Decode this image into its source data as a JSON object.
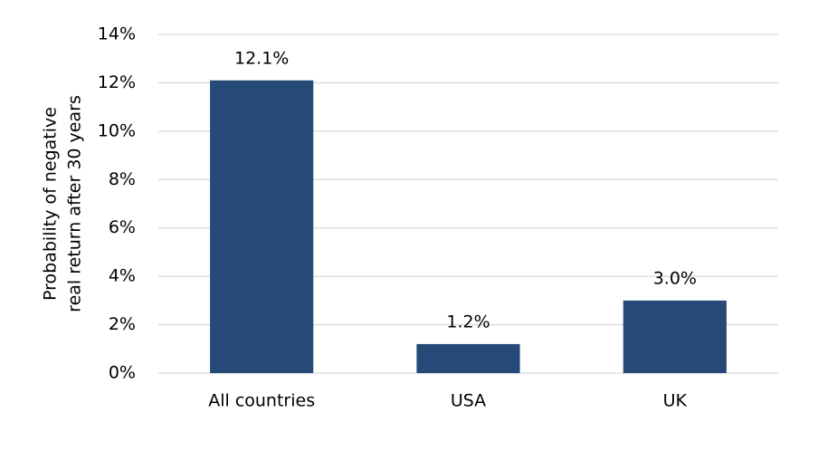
{
  "chart_data": {
    "type": "bar",
    "ylabel": [
      "Probability of negative",
      "real return after 30 years"
    ],
    "categories": [
      "All countries",
      "USA",
      "UK"
    ],
    "values": [
      12.1,
      1.2,
      3.0
    ],
    "value_labels": [
      "12.1%",
      "1.2%",
      "3.0%"
    ],
    "color": "#264a78",
    "ylim": [
      0,
      14
    ],
    "yticks": [
      {
        "value": 0,
        "label": "0%"
      },
      {
        "value": 2,
        "label": "2%"
      },
      {
        "value": 4,
        "label": "4%"
      },
      {
        "value": 6,
        "label": "6%"
      },
      {
        "value": 8,
        "label": "8%"
      },
      {
        "value": 10,
        "label": "10%"
      },
      {
        "value": 12,
        "label": "12%"
      },
      {
        "value": 14,
        "label": "14%"
      }
    ],
    "grid": true
  }
}
